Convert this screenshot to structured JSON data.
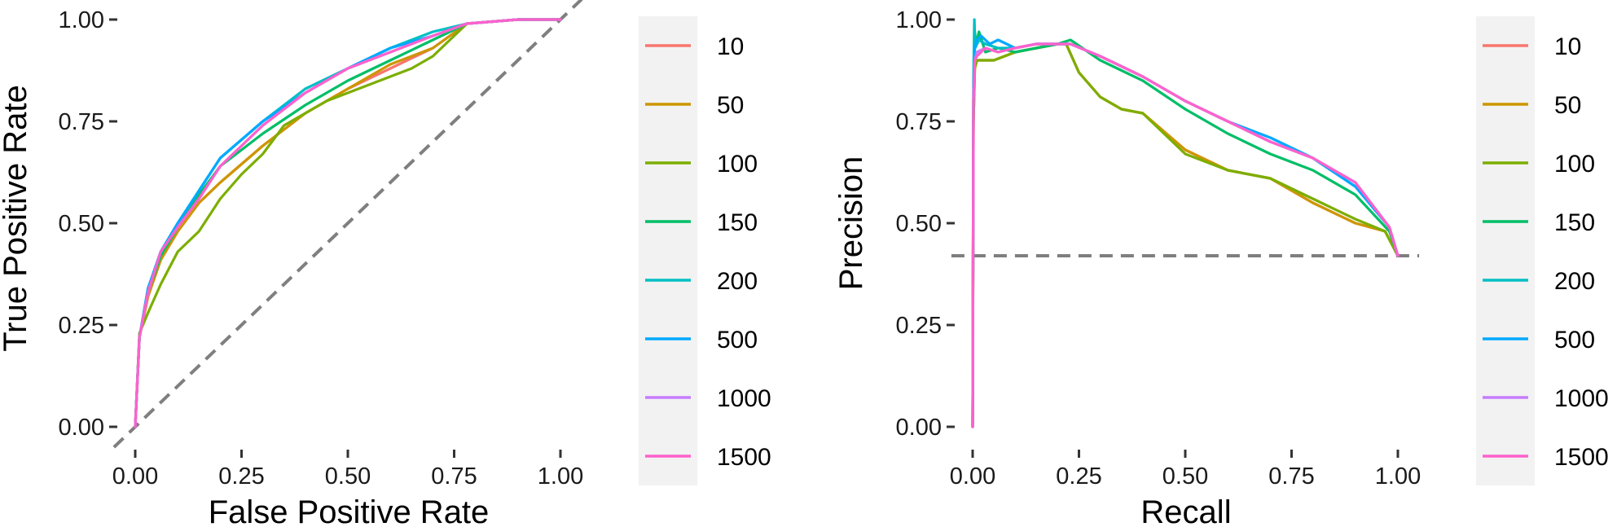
{
  "chart_data": [
    {
      "type": "line",
      "title": "",
      "xlabel": "False Positive Rate",
      "ylabel": "True Positive Rate",
      "xlim": [
        0,
        1
      ],
      "ylim": [
        0,
        1
      ],
      "xticks": [
        "0.00",
        "0.25",
        "0.50",
        "0.75",
        "1.00"
      ],
      "yticks": [
        "0.00",
        "0.25",
        "0.50",
        "0.75",
        "1.00"
      ],
      "grid": false,
      "legend_position": "right",
      "reference_line": {
        "style": "dashed",
        "color": "#7f7f7f",
        "points": [
          [
            -0.05,
            -0.05
          ],
          [
            1.05,
            1.05
          ]
        ]
      },
      "series": [
        {
          "name": "10",
          "color": "#F8766D",
          "x": [
            0,
            0.01,
            0.03,
            0.06,
            0.1,
            0.15,
            0.2,
            0.3,
            0.4,
            0.5,
            0.6,
            0.7,
            0.78,
            0.9,
            1.0
          ],
          "y": [
            0,
            0.22,
            0.32,
            0.41,
            0.48,
            0.55,
            0.6,
            0.69,
            0.77,
            0.83,
            0.88,
            0.93,
            0.99,
            1.0,
            1.0
          ]
        },
        {
          "name": "50",
          "color": "#CD9600",
          "x": [
            0,
            0.01,
            0.03,
            0.06,
            0.1,
            0.15,
            0.2,
            0.3,
            0.4,
            0.5,
            0.6,
            0.7,
            0.78,
            0.9,
            1.0
          ],
          "y": [
            0,
            0.22,
            0.32,
            0.41,
            0.48,
            0.55,
            0.6,
            0.69,
            0.77,
            0.83,
            0.89,
            0.93,
            0.99,
            1.0,
            1.0
          ]
        },
        {
          "name": "100",
          "color": "#7CAE00",
          "x": [
            0,
            0.01,
            0.03,
            0.06,
            0.1,
            0.15,
            0.2,
            0.25,
            0.3,
            0.35,
            0.45,
            0.55,
            0.65,
            0.7,
            0.78,
            0.9,
            1.0
          ],
          "y": [
            0,
            0.23,
            0.28,
            0.35,
            0.43,
            0.48,
            0.56,
            0.62,
            0.67,
            0.74,
            0.8,
            0.84,
            0.88,
            0.91,
            0.99,
            1.0,
            1.0
          ]
        },
        {
          "name": "150",
          "color": "#00BE67",
          "x": [
            0,
            0.01,
            0.03,
            0.06,
            0.1,
            0.15,
            0.2,
            0.3,
            0.4,
            0.5,
            0.6,
            0.7,
            0.78,
            0.9,
            1.0
          ],
          "y": [
            0,
            0.22,
            0.33,
            0.42,
            0.49,
            0.57,
            0.64,
            0.72,
            0.79,
            0.85,
            0.9,
            0.95,
            0.99,
            1.0,
            1.0
          ]
        },
        {
          "name": "200",
          "color": "#00BFC4",
          "x": [
            0,
            0.01,
            0.03,
            0.06,
            0.1,
            0.15,
            0.2,
            0.3,
            0.4,
            0.5,
            0.6,
            0.7,
            0.78,
            0.9,
            1.0
          ],
          "y": [
            0,
            0.22,
            0.34,
            0.43,
            0.5,
            0.58,
            0.66,
            0.75,
            0.83,
            0.88,
            0.93,
            0.97,
            0.99,
            1.0,
            1.0
          ]
        },
        {
          "name": "500",
          "color": "#00A9FF",
          "x": [
            0,
            0.01,
            0.03,
            0.06,
            0.1,
            0.15,
            0.2,
            0.3,
            0.4,
            0.5,
            0.6,
            0.7,
            0.78,
            0.9,
            1.0
          ],
          "y": [
            0,
            0.22,
            0.34,
            0.43,
            0.5,
            0.58,
            0.66,
            0.75,
            0.82,
            0.88,
            0.93,
            0.96,
            0.99,
            1.0,
            1.0
          ]
        },
        {
          "name": "1000",
          "color": "#C77CFF",
          "x": [
            0,
            0.01,
            0.03,
            0.06,
            0.1,
            0.15,
            0.2,
            0.3,
            0.4,
            0.5,
            0.6,
            0.7,
            0.78,
            0.9,
            1.0
          ],
          "y": [
            0,
            0.22,
            0.33,
            0.43,
            0.49,
            0.56,
            0.64,
            0.74,
            0.82,
            0.88,
            0.92,
            0.96,
            0.99,
            1.0,
            1.0
          ]
        },
        {
          "name": "1500",
          "color": "#FF61CC",
          "x": [
            0,
            0.01,
            0.03,
            0.06,
            0.1,
            0.15,
            0.2,
            0.3,
            0.4,
            0.5,
            0.6,
            0.7,
            0.78,
            0.9,
            1.0
          ],
          "y": [
            0,
            0.22,
            0.33,
            0.43,
            0.49,
            0.56,
            0.64,
            0.74,
            0.82,
            0.88,
            0.92,
            0.96,
            0.99,
            1.0,
            1.0
          ]
        }
      ]
    },
    {
      "type": "line",
      "title": "",
      "xlabel": "Recall",
      "ylabel": "Precision",
      "xlim": [
        0,
        1
      ],
      "ylim": [
        0,
        1
      ],
      "xticks": [
        "0.00",
        "0.25",
        "0.50",
        "0.75",
        "1.00"
      ],
      "yticks": [
        "0.00",
        "0.25",
        "0.50",
        "0.75",
        "1.00"
      ],
      "grid": false,
      "legend_position": "right",
      "reference_line": {
        "style": "dashed",
        "color": "#7f7f7f",
        "points": [
          [
            -0.05,
            0.42
          ],
          [
            1.05,
            0.42
          ]
        ]
      },
      "series": [
        {
          "name": "10",
          "color": "#F8766D",
          "x": [
            0,
            0.002,
            0.005,
            0.01,
            0.05,
            0.1,
            0.15,
            0.2,
            0.22,
            0.25,
            0.3,
            0.35,
            0.4,
            0.5,
            0.6,
            0.7,
            0.8,
            0.9,
            0.97,
            1.0
          ],
          "y": [
            0,
            0.75,
            0.88,
            0.9,
            0.9,
            0.92,
            0.93,
            0.94,
            0.94,
            0.87,
            0.81,
            0.78,
            0.77,
            0.68,
            0.63,
            0.61,
            0.55,
            0.5,
            0.48,
            0.42
          ]
        },
        {
          "name": "50",
          "color": "#CD9600",
          "x": [
            0,
            0.002,
            0.005,
            0.01,
            0.05,
            0.1,
            0.15,
            0.2,
            0.22,
            0.25,
            0.3,
            0.35,
            0.4,
            0.5,
            0.6,
            0.7,
            0.8,
            0.9,
            0.97,
            1.0
          ],
          "y": [
            0,
            0.75,
            0.88,
            0.9,
            0.9,
            0.92,
            0.93,
            0.94,
            0.94,
            0.87,
            0.81,
            0.78,
            0.77,
            0.68,
            0.63,
            0.61,
            0.55,
            0.5,
            0.48,
            0.42
          ]
        },
        {
          "name": "100",
          "color": "#7CAE00",
          "x": [
            0,
            0.002,
            0.005,
            0.01,
            0.05,
            0.1,
            0.15,
            0.2,
            0.22,
            0.25,
            0.3,
            0.35,
            0.4,
            0.5,
            0.6,
            0.7,
            0.8,
            0.9,
            0.97,
            1.0
          ],
          "y": [
            0,
            0.75,
            0.88,
            0.9,
            0.9,
            0.92,
            0.93,
            0.94,
            0.94,
            0.87,
            0.81,
            0.78,
            0.77,
            0.67,
            0.63,
            0.61,
            0.56,
            0.51,
            0.48,
            0.42
          ]
        },
        {
          "name": "150",
          "color": "#00BE67",
          "x": [
            0,
            0.002,
            0.005,
            0.008,
            0.015,
            0.03,
            0.06,
            0.1,
            0.15,
            0.2,
            0.23,
            0.3,
            0.4,
            0.5,
            0.6,
            0.7,
            0.8,
            0.9,
            0.98,
            1.0
          ],
          "y": [
            0,
            0.8,
            0.97,
            0.94,
            0.97,
            0.92,
            0.93,
            0.92,
            0.93,
            0.94,
            0.95,
            0.9,
            0.85,
            0.78,
            0.72,
            0.67,
            0.63,
            0.57,
            0.48,
            0.42
          ]
        },
        {
          "name": "200",
          "color": "#00BFC4",
          "x": [
            0,
            0.002,
            0.004,
            0.006,
            0.015,
            0.03,
            0.06,
            0.1,
            0.15,
            0.2,
            0.23,
            0.3,
            0.4,
            0.5,
            0.6,
            0.7,
            0.8,
            0.9,
            0.98,
            1.0
          ],
          "y": [
            0,
            0.85,
            1.0,
            0.93,
            0.95,
            0.94,
            0.93,
            0.93,
            0.94,
            0.94,
            0.94,
            0.91,
            0.86,
            0.8,
            0.75,
            0.7,
            0.66,
            0.59,
            0.49,
            0.42
          ]
        },
        {
          "name": "500",
          "color": "#00A9FF",
          "x": [
            0,
            0.002,
            0.005,
            0.01,
            0.02,
            0.04,
            0.06,
            0.1,
            0.15,
            0.2,
            0.23,
            0.3,
            0.4,
            0.5,
            0.6,
            0.7,
            0.8,
            0.9,
            0.98,
            1.0
          ],
          "y": [
            0,
            0.82,
            0.93,
            0.95,
            0.96,
            0.94,
            0.95,
            0.93,
            0.94,
            0.94,
            0.94,
            0.91,
            0.86,
            0.8,
            0.75,
            0.71,
            0.66,
            0.59,
            0.49,
            0.42
          ]
        },
        {
          "name": "1000",
          "color": "#C77CFF",
          "x": [
            0,
            0.002,
            0.005,
            0.01,
            0.03,
            0.06,
            0.1,
            0.15,
            0.2,
            0.23,
            0.3,
            0.4,
            0.5,
            0.6,
            0.7,
            0.8,
            0.9,
            0.98,
            1.0
          ],
          "y": [
            0,
            0.8,
            0.9,
            0.92,
            0.93,
            0.92,
            0.93,
            0.94,
            0.94,
            0.94,
            0.91,
            0.86,
            0.8,
            0.75,
            0.7,
            0.66,
            0.6,
            0.49,
            0.42
          ]
        },
        {
          "name": "1500",
          "color": "#FF61CC",
          "x": [
            0,
            0.002,
            0.005,
            0.01,
            0.03,
            0.06,
            0.1,
            0.15,
            0.2,
            0.23,
            0.3,
            0.4,
            0.5,
            0.6,
            0.7,
            0.8,
            0.9,
            0.98,
            1.0
          ],
          "y": [
            0,
            0.8,
            0.9,
            0.91,
            0.93,
            0.92,
            0.93,
            0.94,
            0.94,
            0.94,
            0.91,
            0.86,
            0.8,
            0.75,
            0.7,
            0.66,
            0.6,
            0.49,
            0.42
          ]
        }
      ]
    }
  ]
}
